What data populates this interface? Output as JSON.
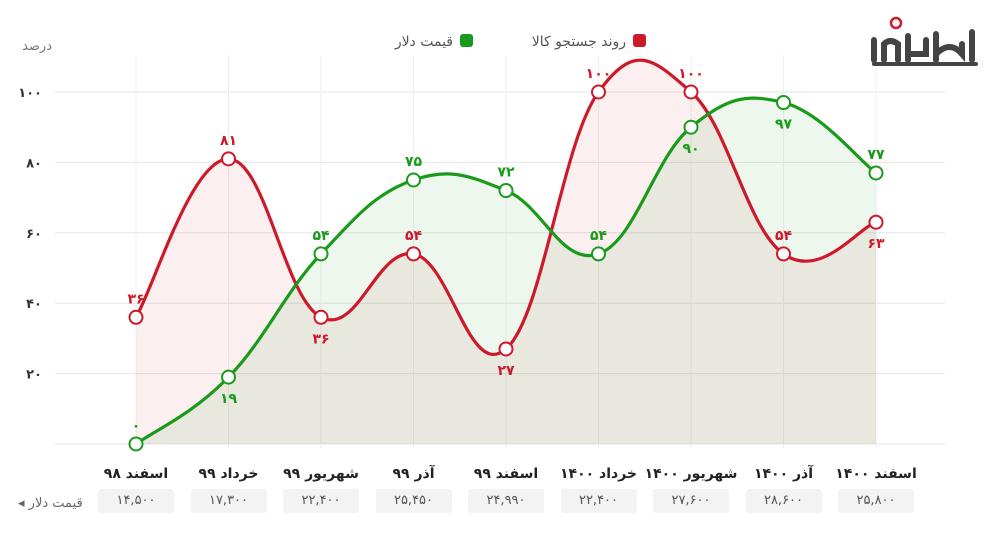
{
  "legend": {
    "search_trend": "روند جستجو کالا",
    "dollar_price": "قیمت دلار"
  },
  "y_unit": "درصد",
  "price_row_label": "قیمت دلار",
  "colors": {
    "search_trend": "#cc1a2b",
    "dollar_price": "#1a9a1a",
    "grid": "#e6e6e6"
  },
  "chart_data": {
    "type": "line",
    "categories": [
      "اسفند ۹۸",
      "خرداد ۹۹",
      "شهریور ۹۹",
      "آذر ۹۹",
      "اسفند ۹۹",
      "خرداد ۱۴۰۰",
      "شهریور ۱۴۰۰",
      "آذر ۱۴۰۰",
      "اسفند ۱۴۰۰"
    ],
    "series": [
      {
        "name": "روند جستجو کالا",
        "values": [
          36,
          81,
          36,
          54,
          27,
          100,
          100,
          54,
          63
        ],
        "labels": [
          "۳۶",
          "۸۱",
          "۳۶",
          "۵۴",
          "۲۷",
          "۱۰۰",
          "۱۰۰",
          "۵۴",
          "۶۳"
        ]
      },
      {
        "name": "قیمت دلار",
        "values": [
          0,
          19,
          54,
          75,
          72,
          54,
          90,
          97,
          77
        ],
        "labels": [
          "۰",
          "۱۹",
          "۵۴",
          "۷۵",
          "۷۲",
          "۵۴",
          "۹۰",
          "۹۷",
          "۷۷"
        ]
      }
    ],
    "y_ticks": [
      100,
      80,
      60,
      40,
      20
    ],
    "y_tick_labels": [
      "۱۰۰",
      "۸۰",
      "۶۰",
      "۴۰",
      "۲۰"
    ],
    "ylim": [
      0,
      100
    ],
    "grid": true,
    "legend_position": "top-center",
    "dollar_prices": [
      "۱۴,۵۰۰",
      "۱۷,۳۰۰",
      "۲۲,۴۰۰",
      "۲۵,۴۵۰",
      "۲۴,۹۹۰",
      "۲۲,۴۰۰",
      "۲۷,۶۰۰",
      "۲۸,۶۰۰",
      "۲۵,۸۰۰"
    ]
  }
}
